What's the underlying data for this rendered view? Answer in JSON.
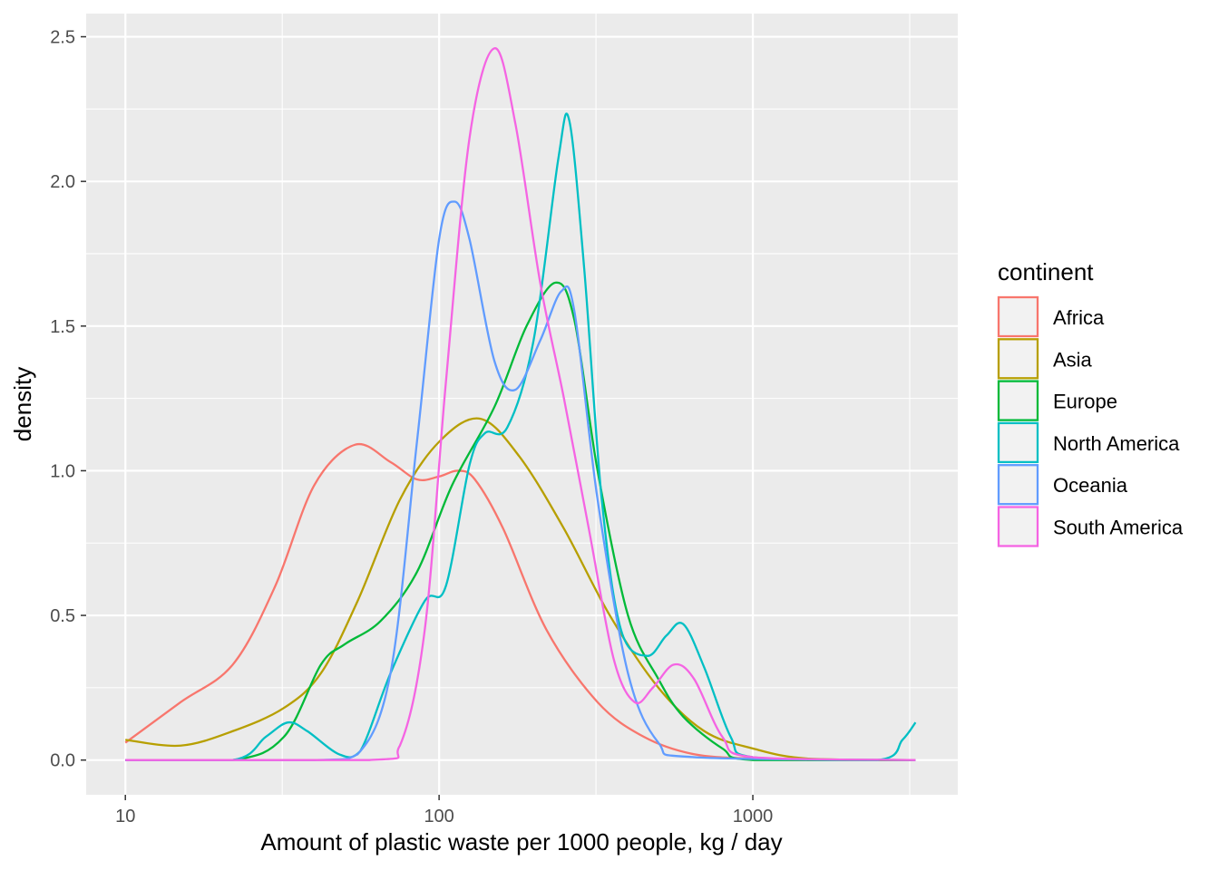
{
  "chart_data": {
    "type": "line",
    "title": "",
    "xlabel": "Amount of plastic waste per 1000 people, kg / day",
    "ylabel": "density",
    "x_scale": "log10",
    "xlim": [
      7.5,
      4500
    ],
    "ylim": [
      -0.12,
      2.58
    ],
    "x_ticks": [
      10,
      100,
      1000
    ],
    "x_tick_labels": [
      "10",
      "100",
      "1000"
    ],
    "y_ticks": [
      0,
      0.5,
      1.0,
      1.5,
      2.0,
      2.5
    ],
    "y_tick_labels": [
      "0.0",
      "0.5",
      "1.0",
      "1.5",
      "2.0",
      "2.5"
    ],
    "grid": true,
    "legend": {
      "title": "continent",
      "position": "right"
    },
    "series": [
      {
        "name": "Africa",
        "color": "#F8766D",
        "points": [
          [
            10,
            0.06
          ],
          [
            15,
            0.2
          ],
          [
            22,
            0.33
          ],
          [
            30,
            0.6
          ],
          [
            40,
            0.95
          ],
          [
            54,
            1.09
          ],
          [
            70,
            1.03
          ],
          [
            85,
            0.97
          ],
          [
            100,
            0.98
          ],
          [
            115,
            1.0
          ],
          [
            130,
            0.97
          ],
          [
            160,
            0.8
          ],
          [
            220,
            0.45
          ],
          [
            320,
            0.2
          ],
          [
            450,
            0.08
          ],
          [
            650,
            0.02
          ],
          [
            1000,
            0.005
          ],
          [
            1500,
            0.0
          ],
          [
            3300,
            0.0
          ]
        ]
      },
      {
        "name": "Asia",
        "color": "#B79F00",
        "points": [
          [
            10,
            0.07
          ],
          [
            15,
            0.05
          ],
          [
            22,
            0.1
          ],
          [
            32,
            0.18
          ],
          [
            42,
            0.3
          ],
          [
            55,
            0.55
          ],
          [
            75,
            0.9
          ],
          [
            100,
            1.1
          ],
          [
            135,
            1.18
          ],
          [
            180,
            1.05
          ],
          [
            250,
            0.8
          ],
          [
            350,
            0.5
          ],
          [
            500,
            0.25
          ],
          [
            700,
            0.1
          ],
          [
            1000,
            0.04
          ],
          [
            1500,
            0.005
          ],
          [
            3300,
            0.0
          ]
        ]
      },
      {
        "name": "Europe",
        "color": "#00BA38",
        "points": [
          [
            10,
            0.0
          ],
          [
            22,
            0.0
          ],
          [
            32,
            0.08
          ],
          [
            42,
            0.33
          ],
          [
            50,
            0.4
          ],
          [
            65,
            0.48
          ],
          [
            85,
            0.65
          ],
          [
            110,
            0.95
          ],
          [
            150,
            1.22
          ],
          [
            190,
            1.5
          ],
          [
            235,
            1.65
          ],
          [
            270,
            1.52
          ],
          [
            320,
            1.0
          ],
          [
            400,
            0.5
          ],
          [
            500,
            0.28
          ],
          [
            600,
            0.15
          ],
          [
            800,
            0.04
          ],
          [
            1000,
            0.0
          ],
          [
            3300,
            0.0
          ]
        ]
      },
      {
        "name": "North America",
        "color": "#00BFC4",
        "points": [
          [
            10,
            0.0
          ],
          [
            22,
            0.0
          ],
          [
            28,
            0.08
          ],
          [
            33,
            0.13
          ],
          [
            38,
            0.1
          ],
          [
            48,
            0.02
          ],
          [
            56,
            0.03
          ],
          [
            70,
            0.3
          ],
          [
            90,
            0.55
          ],
          [
            105,
            0.6
          ],
          [
            125,
            1.02
          ],
          [
            140,
            1.13
          ],
          [
            165,
            1.15
          ],
          [
            200,
            1.45
          ],
          [
            240,
            2.08
          ],
          [
            260,
            2.21
          ],
          [
            290,
            1.7
          ],
          [
            330,
            0.9
          ],
          [
            380,
            0.45
          ],
          [
            460,
            0.36
          ],
          [
            530,
            0.43
          ],
          [
            600,
            0.47
          ],
          [
            700,
            0.32
          ],
          [
            850,
            0.08
          ],
          [
            1000,
            0.01
          ],
          [
            2500,
            0.0
          ],
          [
            3000,
            0.07
          ],
          [
            3300,
            0.13
          ]
        ]
      },
      {
        "name": "Oceania",
        "color": "#619CFF",
        "points": [
          [
            10,
            0.0
          ],
          [
            40,
            0.0
          ],
          [
            55,
            0.02
          ],
          [
            70,
            0.3
          ],
          [
            85,
            1.1
          ],
          [
            100,
            1.8
          ],
          [
            112,
            1.93
          ],
          [
            125,
            1.8
          ],
          [
            150,
            1.38
          ],
          [
            175,
            1.28
          ],
          [
            210,
            1.45
          ],
          [
            245,
            1.62
          ],
          [
            270,
            1.55
          ],
          [
            320,
            0.9
          ],
          [
            400,
            0.3
          ],
          [
            500,
            0.06
          ],
          [
            650,
            0.01
          ],
          [
            3300,
            0.0
          ]
        ]
      },
      {
        "name": "South America",
        "color": "#F564E3",
        "points": [
          [
            10,
            0.0
          ],
          [
            60,
            0.0
          ],
          [
            75,
            0.05
          ],
          [
            90,
            0.45
          ],
          [
            105,
            1.3
          ],
          [
            125,
            2.15
          ],
          [
            150,
            2.46
          ],
          [
            175,
            2.2
          ],
          [
            210,
            1.65
          ],
          [
            250,
            1.25
          ],
          [
            300,
            0.8
          ],
          [
            360,
            0.35
          ],
          [
            420,
            0.2
          ],
          [
            480,
            0.25
          ],
          [
            560,
            0.33
          ],
          [
            650,
            0.28
          ],
          [
            800,
            0.08
          ],
          [
            1000,
            0.01
          ],
          [
            3300,
            0.0
          ]
        ]
      }
    ]
  }
}
